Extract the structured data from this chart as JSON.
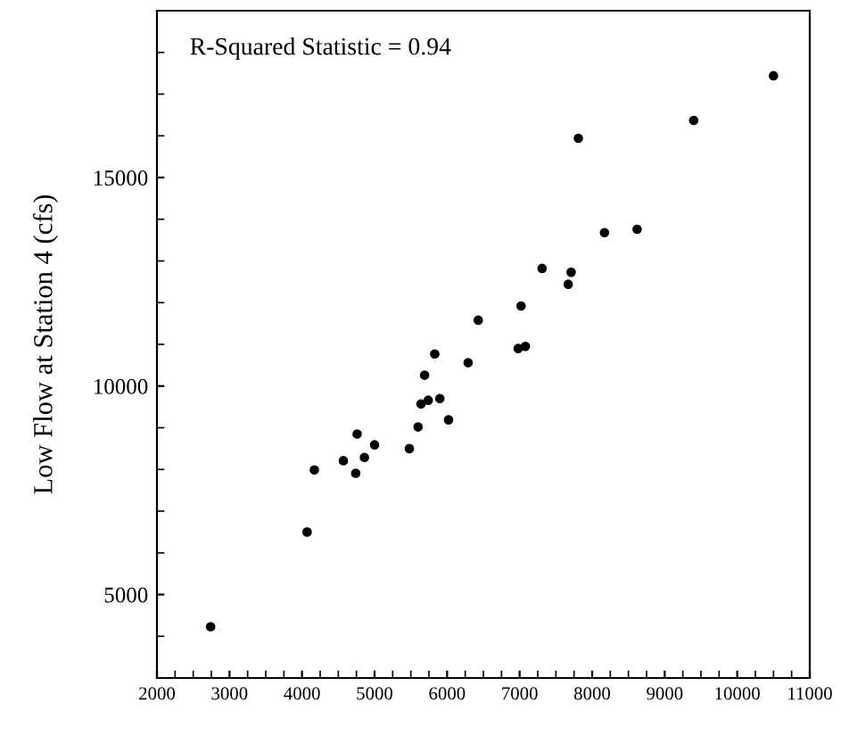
{
  "chart_data": {
    "type": "scatter",
    "ylabel": "Low Flow at Station 4 (cfs)",
    "annotations": [
      "R-Squared Statistic = 0.94"
    ],
    "x": [
      10500,
      9400,
      7810,
      8170,
      8620,
      7310,
      7710,
      7670,
      7020,
      6430,
      6980,
      7080,
      5830,
      6290,
      5690,
      5900,
      5640,
      5740,
      6020,
      5600,
      5480,
      4760,
      5000,
      4860,
      4570,
      4740,
      4170,
      4070,
      2740
    ],
    "values": [
      17440,
      16370,
      15940,
      13680,
      13760,
      12820,
      12730,
      12440,
      11920,
      11580,
      10900,
      10950,
      10770,
      10560,
      10260,
      9700,
      9570,
      9660,
      9190,
      9020,
      8500,
      8850,
      8590,
      8290,
      8210,
      7910,
      7990,
      6500,
      4230
    ],
    "color": "#000000",
    "marker": "circle",
    "grid": false,
    "legend": false,
    "xlim": [
      2000,
      11000
    ],
    "xticks": [
      2000,
      3000,
      4000,
      5000,
      6000,
      7000,
      8000,
      9000,
      10000,
      11000
    ],
    "ylim": [
      3000,
      19000
    ],
    "yticks": [
      5000,
      10000,
      15000
    ]
  }
}
